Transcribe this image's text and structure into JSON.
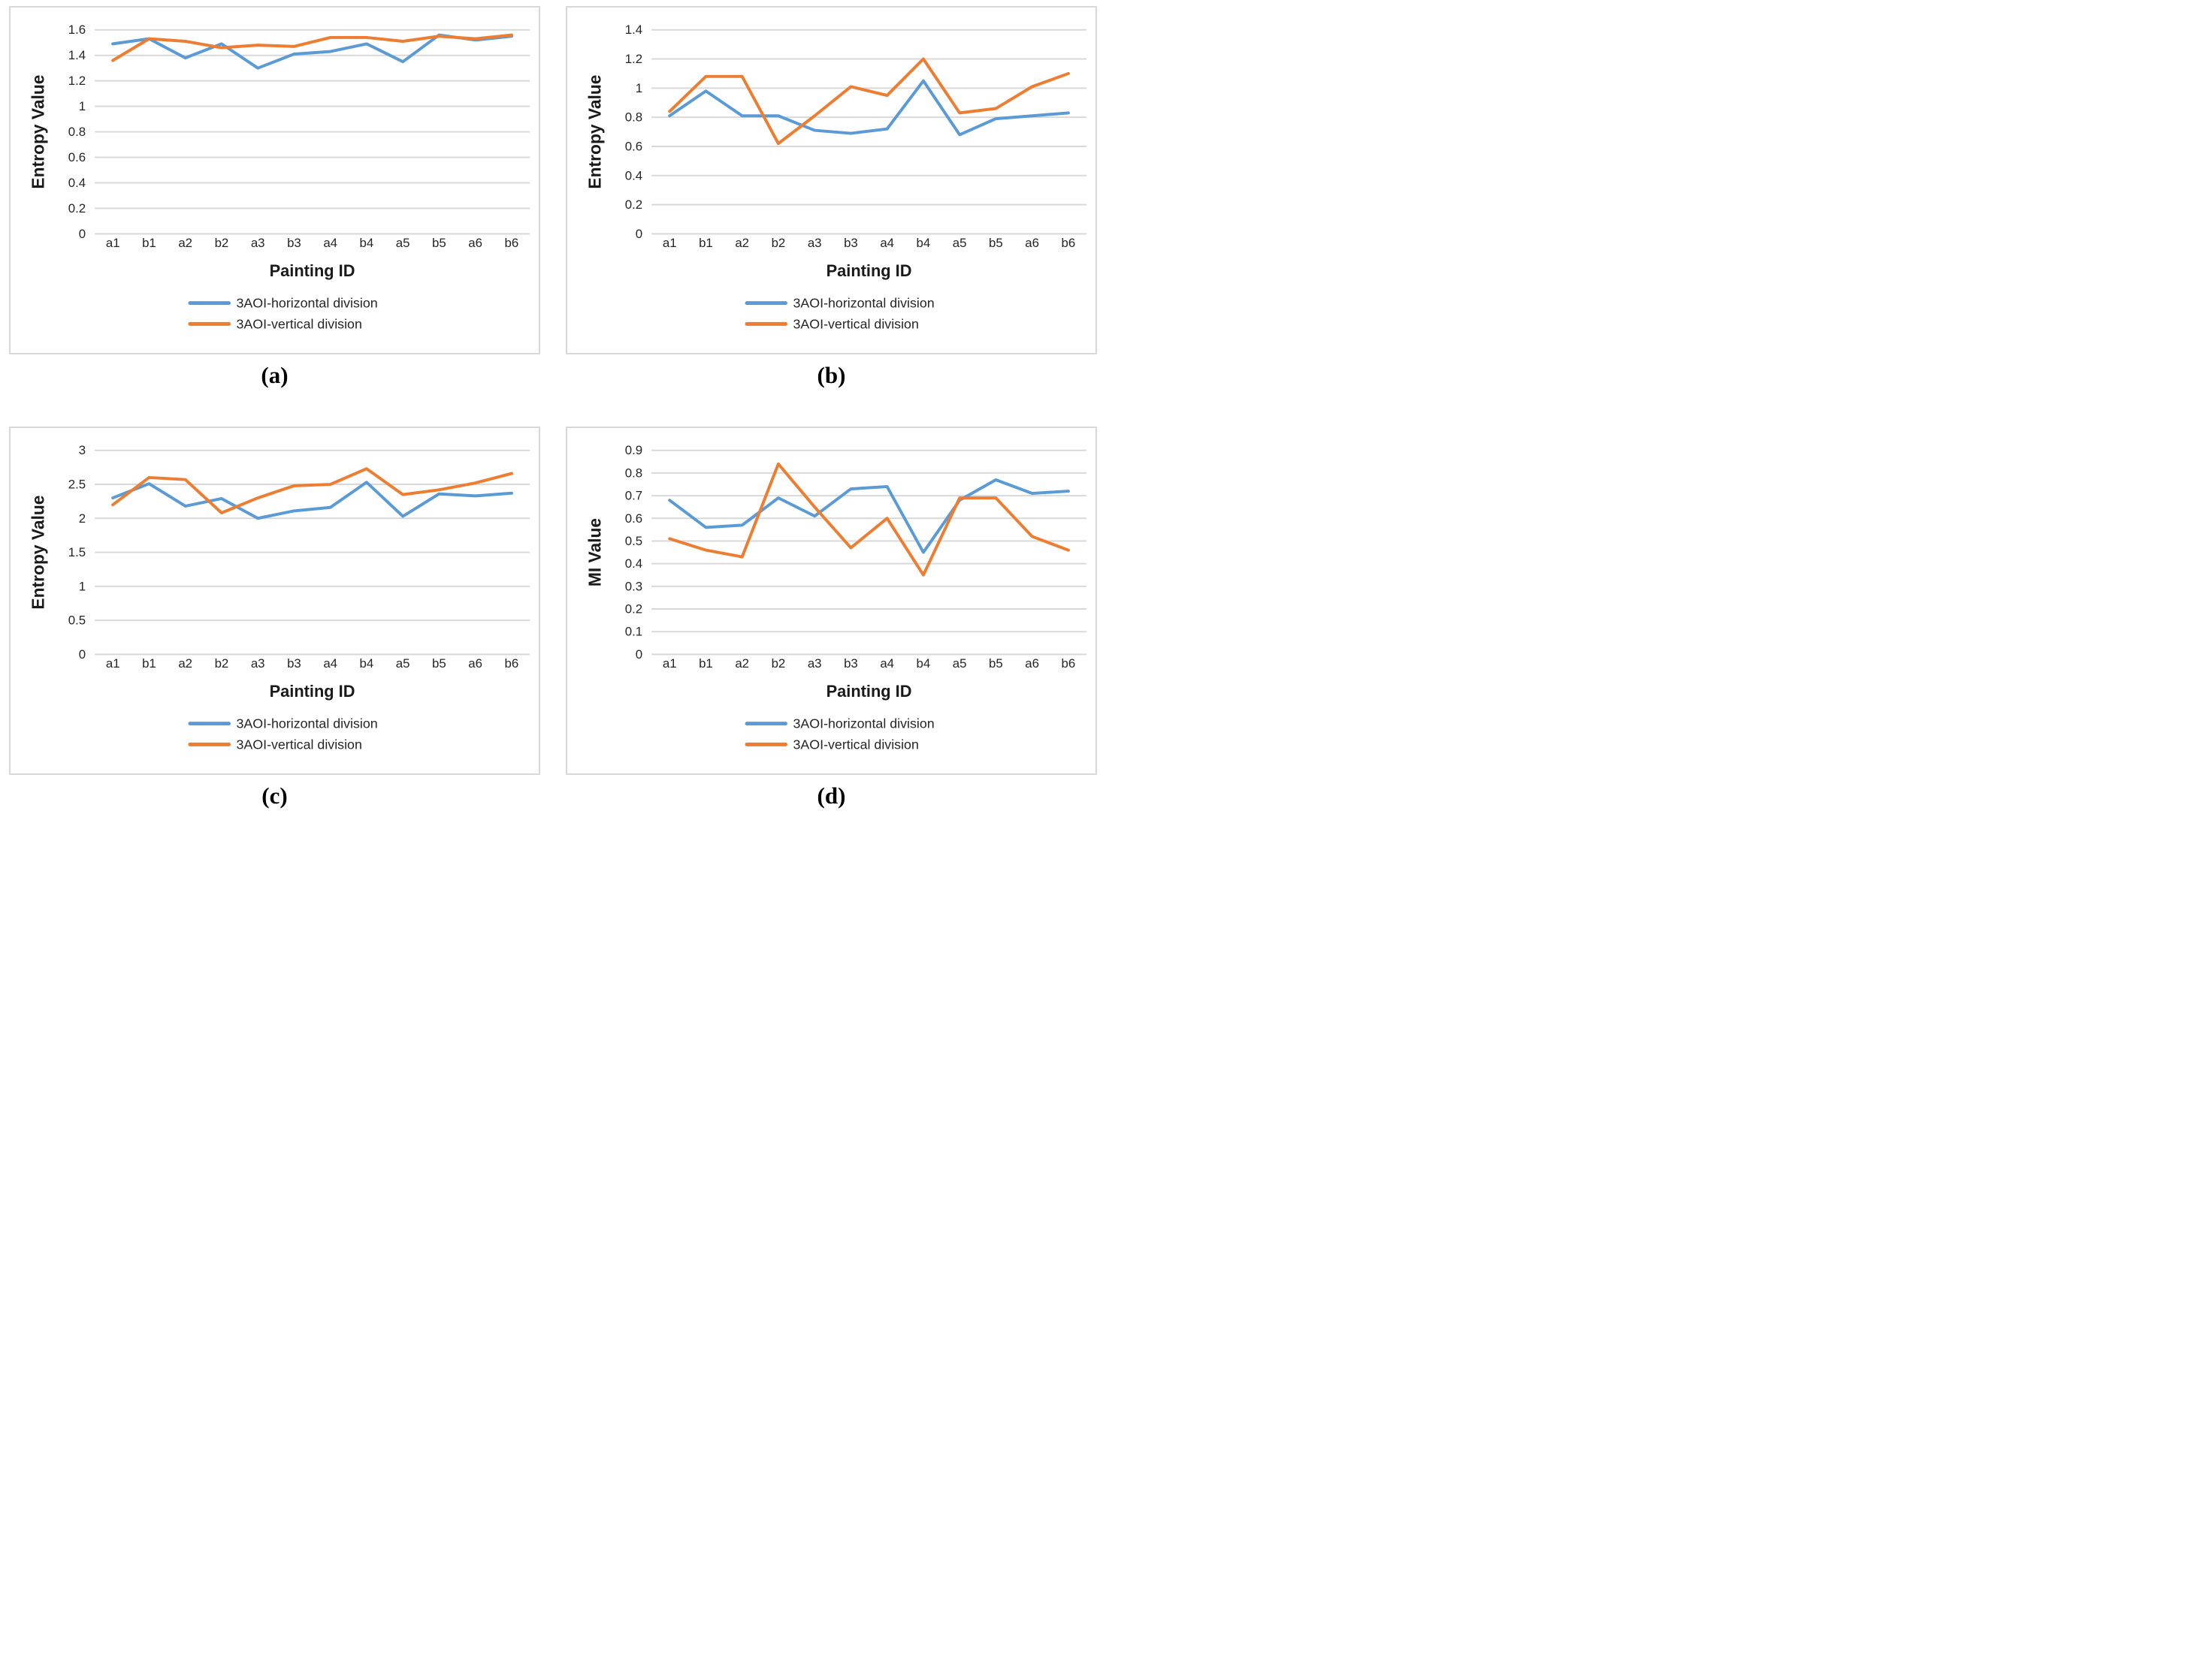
{
  "figure": {
    "background": "#ffffff",
    "panel_border_color": "#d9d9d9",
    "grid_color": "#d9d9d9",
    "text_color": "#262626",
    "accent_blue": "#5b9bd5",
    "accent_orange": "#ed7d31",
    "captions": {
      "a": "(a)",
      "b": "(b)",
      "c": "(c)",
      "d": "(d)"
    }
  },
  "chart_data": [
    {
      "panel": "a",
      "type": "line",
      "title": "",
      "xlabel": "Painting ID",
      "ylabel": "Entropy Value",
      "ylim": [
        0,
        1.6
      ],
      "ystep": 0.2,
      "grid": true,
      "legend_position": "bottom",
      "categories": [
        "a1",
        "b1",
        "a2",
        "b2",
        "a3",
        "b3",
        "a4",
        "b4",
        "a5",
        "b5",
        "a6",
        "b6"
      ],
      "series": [
        {
          "name": "3AOI-horizontal division",
          "color": "#5b9bd5",
          "values": [
            1.49,
            1.53,
            1.38,
            1.49,
            1.3,
            1.41,
            1.43,
            1.49,
            1.35,
            1.56,
            1.52,
            1.55
          ]
        },
        {
          "name": "3AOI-vertical division",
          "color": "#ed7d31",
          "values": [
            1.36,
            1.53,
            1.51,
            1.46,
            1.48,
            1.47,
            1.54,
            1.54,
            1.51,
            1.55,
            1.53,
            1.56
          ]
        }
      ]
    },
    {
      "panel": "b",
      "type": "line",
      "title": "",
      "xlabel": "Painting ID",
      "ylabel": "Entropy Value",
      "ylim": [
        0,
        1.4
      ],
      "ystep": 0.2,
      "grid": true,
      "legend_position": "bottom",
      "categories": [
        "a1",
        "b1",
        "a2",
        "b2",
        "a3",
        "b3",
        "a4",
        "b4",
        "a5",
        "b5",
        "a6",
        "b6"
      ],
      "series": [
        {
          "name": "3AOI-horizontal division",
          "color": "#5b9bd5",
          "values": [
            0.81,
            0.98,
            0.81,
            0.81,
            0.71,
            0.69,
            0.72,
            1.05,
            0.68,
            0.79,
            0.81,
            0.83
          ]
        },
        {
          "name": "3AOI-vertical division",
          "color": "#ed7d31",
          "values": [
            0.84,
            1.08,
            1.08,
            0.62,
            0.81,
            1.01,
            0.95,
            1.2,
            0.83,
            0.86,
            1.01,
            1.1
          ]
        }
      ]
    },
    {
      "panel": "c",
      "type": "line",
      "title": "",
      "xlabel": "Painting ID",
      "ylabel": "Entropy Value",
      "ylim": [
        0,
        3
      ],
      "ystep": 0.5,
      "grid": true,
      "legend_position": "bottom",
      "categories": [
        "a1",
        "b1",
        "a2",
        "b2",
        "a3",
        "b3",
        "a4",
        "b4",
        "a5",
        "b5",
        "a6",
        "b6"
      ],
      "series": [
        {
          "name": "3AOI-horizontal division",
          "color": "#5b9bd5",
          "values": [
            2.3,
            2.51,
            2.18,
            2.29,
            2.0,
            2.11,
            2.16,
            2.53,
            2.03,
            2.36,
            2.33,
            2.37
          ]
        },
        {
          "name": "3AOI-vertical division",
          "color": "#ed7d31",
          "values": [
            2.2,
            2.6,
            2.57,
            2.08,
            2.3,
            2.48,
            2.5,
            2.73,
            2.35,
            2.42,
            2.52,
            2.66
          ]
        }
      ]
    },
    {
      "panel": "d",
      "type": "line",
      "title": "",
      "xlabel": "Painting ID",
      "ylabel": "MI Value",
      "ylim": [
        0,
        0.9
      ],
      "ystep": 0.1,
      "grid": true,
      "legend_position": "bottom",
      "categories": [
        "a1",
        "b1",
        "a2",
        "b2",
        "a3",
        "b3",
        "a4",
        "b4",
        "a5",
        "b5",
        "a6",
        "b6"
      ],
      "series": [
        {
          "name": "3AOI-horizontal division",
          "color": "#5b9bd5",
          "values": [
            0.68,
            0.56,
            0.57,
            0.69,
            0.61,
            0.73,
            0.74,
            0.45,
            0.68,
            0.77,
            0.71,
            0.72
          ]
        },
        {
          "name": "3AOI-vertical division",
          "color": "#ed7d31",
          "values": [
            0.51,
            0.46,
            0.43,
            0.84,
            0.65,
            0.47,
            0.6,
            0.35,
            0.69,
            0.69,
            0.52,
            0.46
          ]
        }
      ]
    }
  ]
}
